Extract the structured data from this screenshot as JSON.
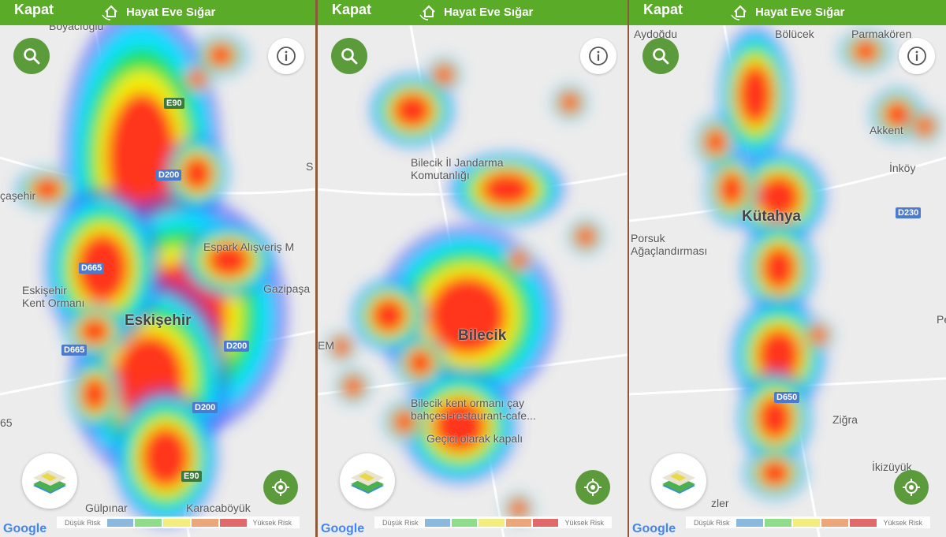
{
  "header": {
    "close_label": "Kapat",
    "brand": "Hayat Eve Sığar"
  },
  "legend": {
    "low": "Düşük Risk",
    "high": "Yüksek Risk",
    "colors": [
      "#8bb9de",
      "#8edc8c",
      "#f3ec7e",
      "#eba77a",
      "#e06a6a"
    ]
  },
  "heat_colors": [
    "#3b4cff",
    "#00e5ff",
    "#22e04a",
    "#ffee00",
    "#ff2a1f"
  ],
  "brand_color": "#5aab27",
  "google": "Google",
  "icons": [
    "search-icon",
    "info-icon",
    "map-layers-icon",
    "my-location-icon",
    "house-hand-icon"
  ],
  "panels": [
    {
      "city": "Eskişehir",
      "labels": [
        "Boyacıoğlu",
        "çaşehir",
        "Espark Alışveriş M",
        "Gazipaşa",
        "Eskişehir\nKent Ormanı",
        "Karacaböyük",
        "Gülpınar",
        "S",
        "65"
      ],
      "roads": [
        "E90",
        "D200",
        "D665",
        "D665",
        "D200",
        "D200",
        "E90"
      ]
    },
    {
      "city": "Bilecik",
      "labels": [
        "Bilecik İl Jandarma\nKomutanlığı",
        "Bilecik kent ormanı çay\nbahçesi-restaurant-cafe...",
        "Geçici olarak kapalı",
        "EM"
      ],
      "roads": []
    },
    {
      "city": "Kütahya",
      "labels": [
        "Aydoğdu",
        "Bölücek",
        "Parmakören",
        "Akkent",
        "İnköy",
        "Porsuk\nAğaçlandırması",
        "Per",
        "Ziğra",
        "İkizüyük",
        "zler"
      ],
      "roads": [
        "D230",
        "D650"
      ]
    }
  ]
}
